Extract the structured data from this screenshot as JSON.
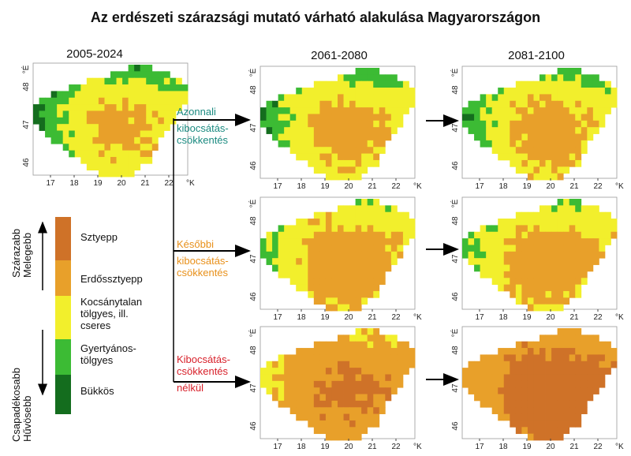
{
  "title": "Az erdészeti szárazsági mutató várható alakulása Magyarországon",
  "periods": [
    "2005-2024",
    "2061-2080",
    "2081-2100"
  ],
  "axis": {
    "lon_ticks": [
      "17",
      "18",
      "19",
      "20",
      "21",
      "22"
    ],
    "lon_unit": "°K",
    "lat_ticks": [
      "48",
      "47",
      "46"
    ],
    "lat_unit": "°É"
  },
  "scenarios": [
    {
      "line1": "Azonnali",
      "line2": "kibocsátás-",
      "line3": "csökkentés",
      "color": "#1a8a80"
    },
    {
      "line1": "Későbbi",
      "line2": "kibocsátás-",
      "line3": "csökkentés",
      "color": "#e8901a"
    },
    {
      "line1": "Kibocsátás-",
      "line2": "csökkentés",
      "line3": "nélkül",
      "color": "#d8202a"
    }
  ],
  "legend": {
    "items": [
      {
        "label_lines": [
          "Sztyepp"
        ],
        "color": "#cf7228"
      },
      {
        "label_lines": [
          "Erdőssztyepp"
        ],
        "color": "#e8a02a"
      },
      {
        "label_lines": [
          "Kocsánytalan",
          "tölgyes, ill.",
          "cseres"
        ],
        "color": "#f2ef2c"
      },
      {
        "label_lines": [
          "Gyertyános-",
          "tölgyes"
        ],
        "color": "#3cbb34"
      },
      {
        "label_lines": [
          "Bükkös"
        ],
        "color": "#146d1e"
      }
    ],
    "top_arrow_lines": [
      "Szárazabb",
      "Melegebb"
    ],
    "bottom_arrow_lines": [
      "Csapadékosabb",
      "Hűvösebb"
    ]
  }
}
